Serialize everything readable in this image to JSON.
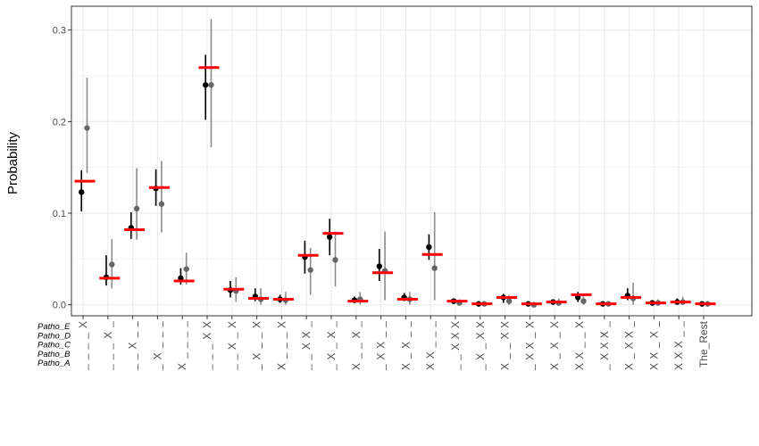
{
  "chart_data": {
    "type": "scatter",
    "title": "",
    "xlabel": "",
    "ylabel": "Probability",
    "ylim": [
      -0.012,
      0.326
    ],
    "y_ticks": [
      "0.0",
      "0.1",
      "0.2",
      "0.3"
    ],
    "grid": true,
    "pathogen_rows": [
      "Patho_E",
      "Patho_D",
      "Patho_C",
      "Patho_B",
      "Patho_A"
    ],
    "categories": [
      "____X",
      "___X_",
      "__X__",
      "_X___",
      "X____",
      "___XX",
      "__X_X",
      "_X__X",
      "X___X",
      "__XX_",
      "_X_X_",
      "X__X_",
      "_XX__",
      "X_X__",
      "XX___",
      "__XXX",
      "_X_XX",
      "X__XX",
      "_XX_X",
      "X_X_X",
      "XX__X",
      "_XXX_",
      "X_XX_",
      "XX_X_",
      "XXX__",
      "The_Rest"
    ],
    "series": [
      {
        "style": "black point with vertical interval",
        "values": [
          0.123,
          0.03,
          0.084,
          0.127,
          0.029,
          0.24,
          0.016,
          0.009,
          0.006,
          0.052,
          0.074,
          0.005,
          0.042,
          0.008,
          0.063,
          0.004,
          0.001,
          0.008,
          0.001,
          0.003,
          0.008,
          0.001,
          0.01,
          0.002,
          0.003,
          0.001
        ],
        "lower": [
          0.102,
          0.021,
          0.072,
          0.108,
          0.022,
          0.202,
          0.008,
          0.004,
          0.002,
          0.034,
          0.054,
          0.002,
          0.026,
          0.004,
          0.049,
          0.001,
          0.0,
          0.002,
          0.0,
          0.001,
          0.003,
          0.0,
          0.005,
          0.0,
          0.001,
          0.0
        ],
        "upper": [
          0.147,
          0.054,
          0.101,
          0.148,
          0.04,
          0.273,
          0.026,
          0.018,
          0.011,
          0.07,
          0.094,
          0.009,
          0.061,
          0.013,
          0.077,
          0.007,
          0.003,
          0.012,
          0.003,
          0.006,
          0.014,
          0.003,
          0.018,
          0.005,
          0.007,
          0.003
        ]
      },
      {
        "style": "grey point with vertical interval",
        "values": [
          0.193,
          0.044,
          0.105,
          0.11,
          0.039,
          0.24,
          0.015,
          0.006,
          0.005,
          0.038,
          0.049,
          0.006,
          0.037,
          0.006,
          0.04,
          0.002,
          0.001,
          0.004,
          0.0,
          0.002,
          0.004,
          0.001,
          0.007,
          0.002,
          0.003,
          0.001
        ],
        "lower": [
          0.144,
          0.018,
          0.071,
          0.079,
          0.022,
          0.172,
          0.003,
          0.0,
          0.0,
          0.011,
          0.02,
          0.0,
          0.005,
          0.0,
          0.005,
          0.0,
          0.0,
          0.0,
          0.0,
          0.0,
          0.0,
          0.0,
          0.0,
          0.0,
          0.0,
          0.0
        ],
        "upper": [
          0.248,
          0.072,
          0.149,
          0.157,
          0.057,
          0.312,
          0.03,
          0.018,
          0.014,
          0.062,
          0.08,
          0.014,
          0.08,
          0.014,
          0.101,
          0.006,
          0.004,
          0.011,
          0.003,
          0.007,
          0.012,
          0.004,
          0.024,
          0.006,
          0.009,
          0.003
        ]
      },
      {
        "style": "red horizontal segment",
        "values": [
          0.135,
          0.029,
          0.082,
          0.128,
          0.026,
          0.259,
          0.017,
          0.007,
          0.006,
          0.054,
          0.078,
          0.004,
          0.035,
          0.006,
          0.055,
          0.004,
          0.001,
          0.008,
          0.001,
          0.003,
          0.011,
          0.001,
          0.008,
          0.002,
          0.003,
          0.001
        ]
      }
    ],
    "colors": {
      "point": "#000000",
      "point_alt": "#666666",
      "interval_alt": "#8c8c8c",
      "reference": "#ff0000",
      "grid": "#ebebeb",
      "border": "#333333"
    }
  }
}
